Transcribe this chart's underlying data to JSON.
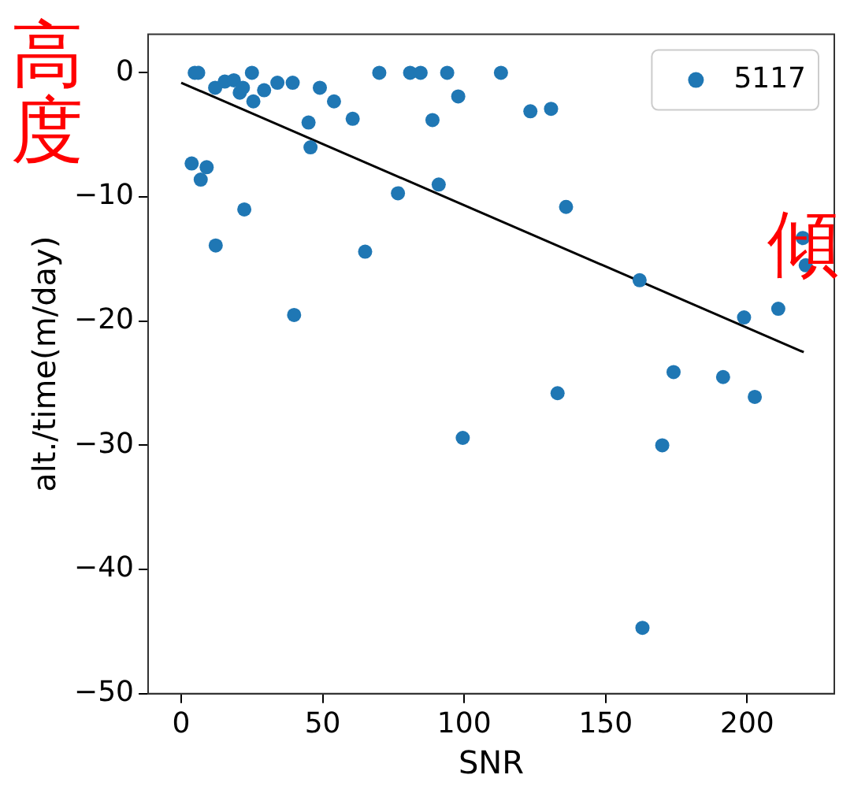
{
  "chart_data": {
    "type": "scatter",
    "xlabel": "SNR",
    "ylabel": "alt./time(m/day)",
    "annotations": [
      "高度",
      "傾"
    ],
    "xlim": [
      -11.7,
      230.8
    ],
    "ylim": [
      -50,
      3.1
    ],
    "xticks": [
      0,
      50,
      100,
      150,
      200
    ],
    "yticks": [
      -50,
      -40,
      -30,
      -20,
      -10,
      0
    ],
    "grid": false,
    "legend": "top right",
    "marker": "circle",
    "series": [
      {
        "name": "5117",
        "color": "#1f77b4",
        "type": "scatter",
        "x": [
          4.8,
          6,
          3.7,
          6.9,
          9,
          12,
          12.2,
          15.4,
          18.6,
          20.7,
          21.8,
          22.3,
          25,
          25.5,
          29.3,
          34,
          39.4,
          39.9,
          45,
          45.7,
          49,
          54,
          60.6,
          65,
          70,
          76.6,
          80.9,
          84.6,
          88.8,
          91,
          94,
          97.9,
          99.5,
          113,
          123.4,
          130.7,
          133,
          136,
          162,
          163,
          170,
          174,
          191.5,
          198.9,
          202.7,
          211,
          219.7,
          220.7
        ],
        "values": [
          0,
          0,
          -7.3,
          -8.6,
          -7.6,
          -1.2,
          -13.9,
          -0.7,
          -0.6,
          -1.6,
          -1.2,
          -11,
          0,
          -2.3,
          -1.4,
          -0.8,
          -0.8,
          -19.5,
          -4.0,
          -6.0,
          -1.2,
          -2.3,
          -3.7,
          -14.4,
          0,
          -9.7,
          0,
          0,
          -3.8,
          -9.0,
          0,
          -1.9,
          -29.4,
          0,
          -3.1,
          -2.9,
          -25.8,
          -10.8,
          -16.7,
          -44.7,
          -30,
          -24.1,
          -24.5,
          -19.7,
          -26.1,
          -19,
          -13.3,
          -15.5
        ]
      },
      {
        "color": "#000000",
        "type": "line",
        "line_style": "solid",
        "marker": "none",
        "x": [
          0,
          220
        ],
        "values": [
          -0.8,
          -22.5
        ]
      }
    ]
  }
}
